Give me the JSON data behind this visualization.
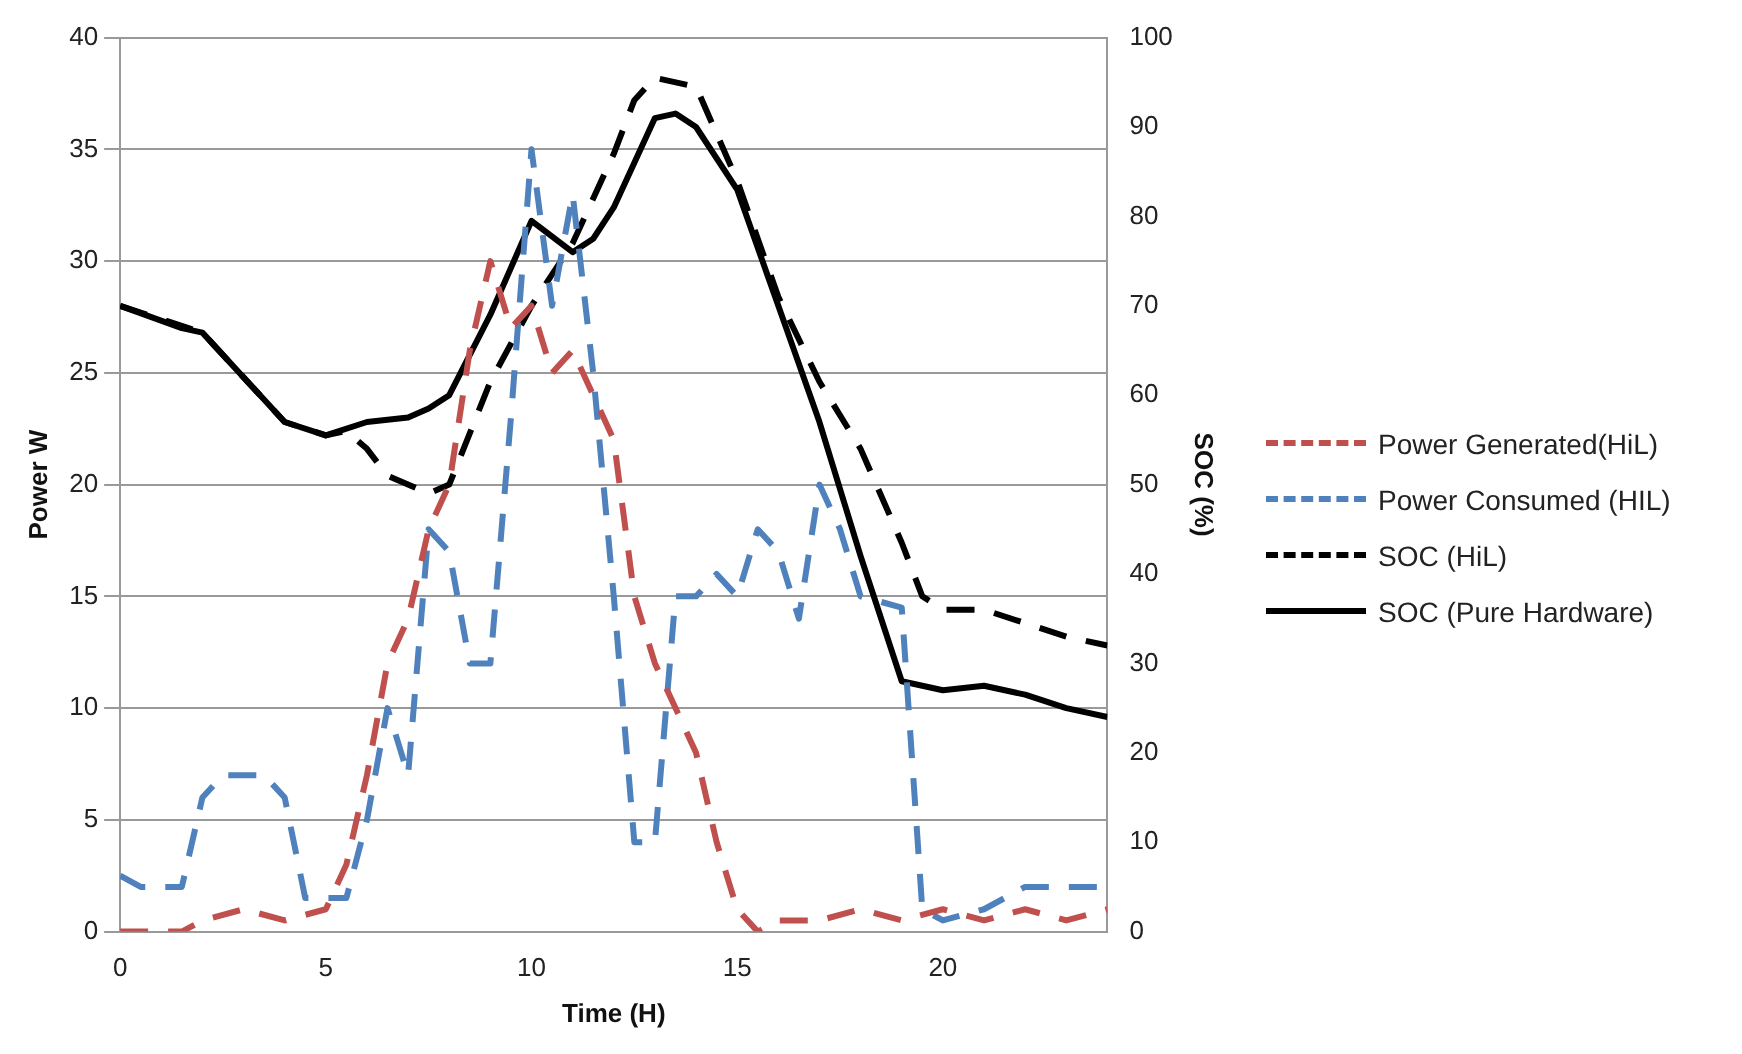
{
  "chart_data": {
    "type": "line",
    "xlabel": "Time (H)",
    "ylabel": "Power W",
    "y2label": "SOC (%)",
    "xlim": [
      0,
      24
    ],
    "xticks": [
      0,
      5,
      10,
      15,
      20
    ],
    "ylim": [
      0,
      40
    ],
    "yticks": [
      0,
      5,
      10,
      15,
      20,
      25,
      30,
      35,
      40
    ],
    "y2lim": [
      0,
      100
    ],
    "y2ticks": [
      0,
      10,
      20,
      30,
      40,
      50,
      60,
      70,
      80,
      90,
      100
    ],
    "grid": "y",
    "legend": "right",
    "marker": "none",
    "series": [
      {
        "name": "Power Generated(HiL)",
        "color": "#c0504d",
        "line_style": "dashed",
        "x": [
          0,
          1.5,
          2,
          3,
          4,
          5,
          5.5,
          6,
          6.5,
          7,
          7.5,
          8,
          8.5,
          9,
          9.5,
          10,
          10.5,
          11,
          11.5,
          12,
          12.5,
          13,
          13.5,
          14,
          14.5,
          15,
          15.5,
          16,
          17,
          18,
          19,
          20,
          21,
          22,
          23,
          24
        ],
        "values": [
          0,
          0,
          0.5,
          1,
          0.5,
          1,
          3,
          7,
          12,
          14,
          18,
          20,
          26,
          30,
          27,
          28,
          25,
          26,
          24,
          22,
          15,
          12,
          10,
          8,
          4,
          1,
          0,
          0.5,
          0.5,
          1,
          0.5,
          1,
          0.5,
          1,
          0.5,
          1
        ]
      },
      {
        "name": "Power Consumed (HIL)",
        "color": "#4f81bd",
        "line_style": "dashed",
        "x": [
          0,
          0.5,
          1.5,
          2,
          2.5,
          3.5,
          4,
          4.5,
          5.5,
          6,
          6.5,
          7,
          7.5,
          8,
          8.5,
          9,
          9.5,
          10,
          10.5,
          11,
          11.5,
          12,
          12.5,
          13,
          13.5,
          14,
          14.5,
          15,
          15.5,
          16,
          16.5,
          17,
          17.5,
          18,
          19,
          19.5,
          20,
          21,
          22,
          23,
          24
        ],
        "values": [
          2.5,
          2,
          2,
          6,
          7,
          7,
          6,
          1.5,
          1.5,
          5,
          10,
          7,
          18,
          17,
          12,
          12,
          23,
          35,
          28,
          33,
          25,
          15,
          4,
          4,
          15,
          15,
          16,
          15,
          18,
          17,
          14,
          20,
          18,
          15,
          14.5,
          1,
          0.5,
          1,
          2,
          2,
          2
        ]
      },
      {
        "name": "SOC (HiL)",
        "color": "#000000",
        "line_style": "dashed",
        "axis": "y2",
        "x": [
          0,
          2,
          4,
          5,
          5.5,
          6,
          6.5,
          7.5,
          8,
          9,
          10,
          11,
          12,
          12.5,
          13,
          14,
          15,
          16,
          17,
          18,
          19,
          19.5,
          20,
          21,
          22,
          23,
          24
        ],
        "values": [
          70,
          67,
          57,
          55.5,
          56,
          54,
          51,
          49,
          50,
          61.5,
          70,
          77,
          87,
          93,
          95.5,
          94.5,
          84,
          71,
          61.5,
          54,
          43.5,
          37.5,
          36,
          36,
          34.5,
          33,
          32
        ]
      },
      {
        "name": "SOC (Pure Hardware)",
        "color": "#000000",
        "line_style": "solid",
        "axis": "y2",
        "x": [
          0,
          1.5,
          2,
          4,
          5,
          6,
          7,
          7.5,
          8,
          9,
          10,
          11,
          11.5,
          12,
          13,
          13.5,
          14,
          15,
          16,
          17,
          18,
          19,
          20,
          21,
          22,
          23,
          24
        ],
        "values": [
          70,
          67.5,
          67,
          57,
          55.5,
          57,
          57.5,
          58.5,
          60,
          69,
          79.5,
          76,
          77.5,
          81,
          91,
          91.5,
          90,
          83,
          70,
          57,
          42,
          28,
          27,
          27.5,
          26.5,
          25,
          24
        ]
      }
    ]
  }
}
